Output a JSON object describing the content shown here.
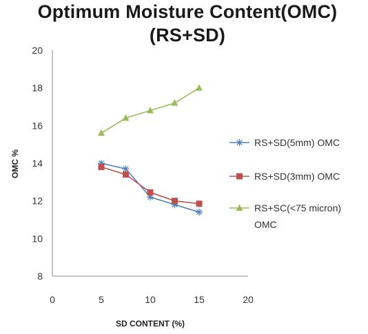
{
  "chart_data": {
    "type": "line",
    "title": [
      "Optimum Moisture Content(OMC)",
      "(RS+SD)"
    ],
    "xlabel": "SD CONTENT (%)",
    "ylabel": "OMC %",
    "xlim": [
      0,
      20
    ],
    "ylim": [
      8,
      20
    ],
    "xticks": [
      "0",
      "5",
      "10",
      "15",
      "20"
    ],
    "yticks": [
      "8",
      "10",
      "12",
      "14",
      "16",
      "18",
      "20"
    ],
    "grid": false,
    "legend_position": "right",
    "x": [
      5,
      7.5,
      10,
      12.5,
      15
    ],
    "series": [
      {
        "name": "RS+SD(5mm) OMC",
        "color": "#4f81bd",
        "marker": "asterisk",
        "values": [
          14.0,
          13.7,
          12.2,
          11.8,
          11.4
        ]
      },
      {
        "name": "RS+SD(3mm) OMC",
        "color": "#c0504d",
        "marker": "square",
        "values": [
          13.8,
          13.4,
          12.45,
          12.0,
          11.85
        ]
      },
      {
        "name": [
          "RS+SC(<75 micron)",
          "OMC"
        ],
        "color": "#9bbb59",
        "marker": "triangle",
        "values": [
          15.6,
          16.4,
          16.8,
          17.2,
          18.0
        ]
      }
    ]
  }
}
